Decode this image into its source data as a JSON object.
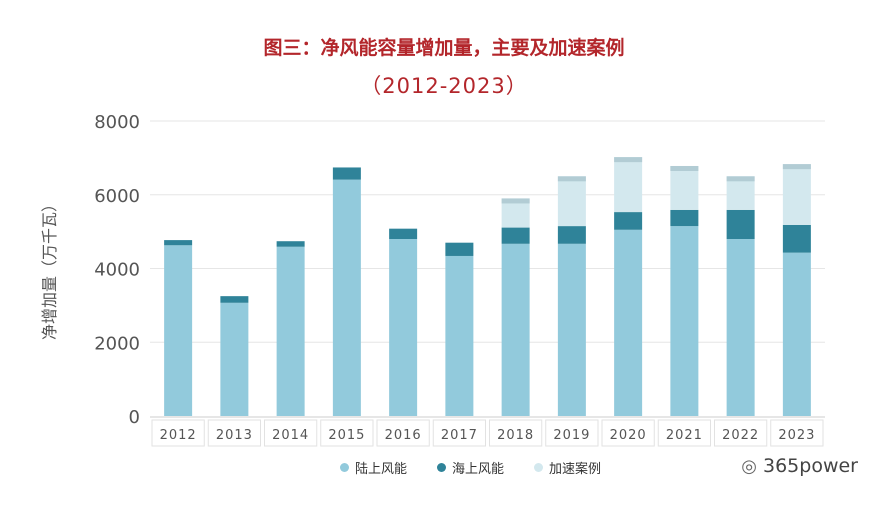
{
  "chart_data": {
    "type": "bar",
    "stacked": true,
    "title": "图三：净风能容量增加量，主要及加速案例",
    "subtitle": "（2012-2023）",
    "xlabel": "",
    "ylabel": "净增加量（万千瓦）",
    "ylim": [
      0,
      8000
    ],
    "yticks": [
      "0",
      "2000",
      "4000",
      "6000",
      "8000"
    ],
    "grid": true,
    "legend_position": "bottom",
    "categories": [
      "2012",
      "2013",
      "2014",
      "2015",
      "2016",
      "2017",
      "2018",
      "2019",
      "2020",
      "2021",
      "2022",
      "2023"
    ],
    "series": [
      {
        "name": "陆上风能",
        "color": "#92cadc",
        "values": [
          4630,
          3070,
          4590,
          6410,
          4800,
          4340,
          4670,
          4670,
          5050,
          5150,
          4800,
          4430
        ]
      },
      {
        "name": "海上风能",
        "color": "#2f8399",
        "values": [
          140,
          180,
          150,
          330,
          280,
          360,
          440,
          480,
          480,
          440,
          790,
          750
        ]
      },
      {
        "name": "加速案例",
        "color": "#d3e8ee",
        "values": [
          0,
          0,
          0,
          0,
          0,
          0,
          790,
          1350,
          1490,
          1190,
          910,
          1650
        ]
      }
    ]
  },
  "watermark": "365power",
  "colors": {
    "title": "#b3262b",
    "cap": "#b2ccd4"
  }
}
